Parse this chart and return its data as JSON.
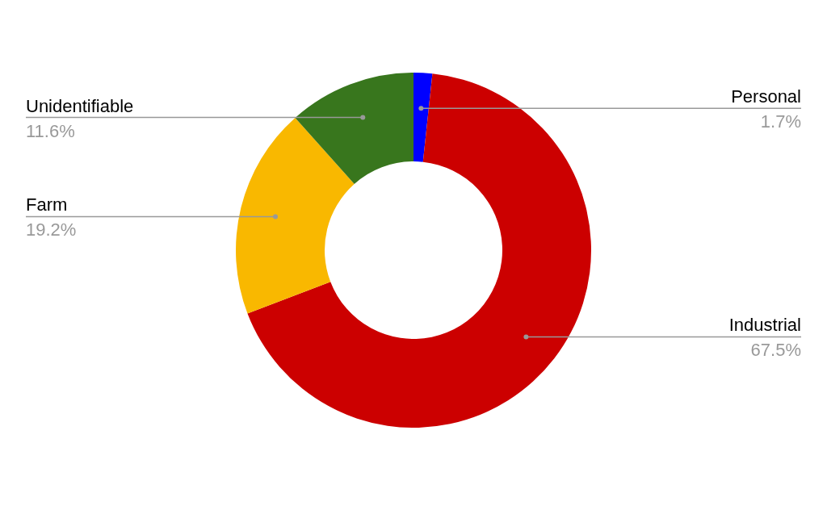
{
  "chart_data": {
    "type": "donut",
    "categories": [
      "Personal",
      "Industrial",
      "Farm",
      "Unidentifiable"
    ],
    "values": [
      1.7,
      67.5,
      19.2,
      11.6
    ],
    "colors": [
      "#0000ff",
      "#cc0000",
      "#f9b800",
      "#38761d"
    ],
    "value_labels": [
      "1.7%",
      "67.5%",
      "19.2%",
      "11.6%"
    ],
    "legend": false
  }
}
